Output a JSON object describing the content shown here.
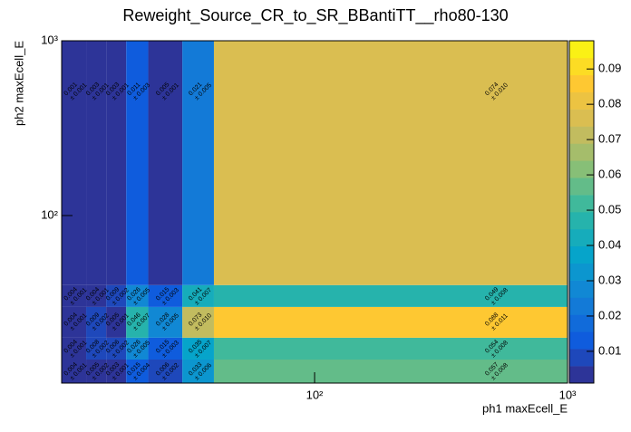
{
  "chart_data": {
    "type": "heatmap",
    "title": "Reweight_Source_CR_to_SR_BBantiTT__rho80-130",
    "x_label": "ph1 maxEcell_E",
    "y_label": "ph2 maxEcell_E",
    "x_edges": [
      10,
      12.5,
      15,
      18,
      22,
      30,
      40,
      1000
    ],
    "y_edges": [
      11,
      15,
      20,
      30,
      40,
      1000
    ],
    "xlim": [
      10,
      1000
    ],
    "ylim": [
      11,
      1000
    ],
    "x_log": true,
    "y_log": true,
    "xticks": [
      {
        "value": 100,
        "label": "10²"
      },
      {
        "value": 1000,
        "label": "10³"
      }
    ],
    "yticks": [
      {
        "value": 100,
        "label": "10²"
      },
      {
        "value": 1000,
        "label": "10³"
      }
    ],
    "z": [
      [
        0.004,
        0.005,
        0.003,
        0.015,
        0.006,
        0.033,
        0.057
      ],
      [
        0.004,
        0.008,
        0.006,
        0.026,
        0.015,
        0.035,
        0.054
      ],
      [
        0.004,
        0.009,
        0.005,
        0.046,
        0.028,
        0.073,
        0.088
      ],
      [
        0.004,
        0.004,
        0.009,
        0.026,
        0.015,
        0.041,
        0.049
      ],
      [
        0.001,
        0.003,
        0.003,
        0.011,
        0.005,
        0.021,
        0.074
      ]
    ],
    "error_labels": [
      [
        "± 0.001",
        "± 0.002",
        "± 0.001",
        "± 0.004",
        "± 0.002",
        "± 0.006",
        "± 0.008"
      ],
      [
        "± 0.001",
        "± 0.002",
        "± 0.002",
        "± 0.005",
        "± 0.003",
        "± 0.007",
        "± 0.008"
      ],
      [
        "± 0.001",
        "± 0.002",
        "± 0.001",
        "± 0.007",
        "± 0.005",
        "± 0.010",
        "± 0.011"
      ],
      [
        "± 0.001",
        "± 0.001",
        "± 0.002",
        "± 0.005",
        "± 0.003",
        "± 0.007",
        "± 0.008"
      ],
      [
        "± 0.001",
        "± 0.001",
        "± 0.001",
        "± 0.003",
        "± 0.001",
        "± 0.005",
        "± 0.010"
      ]
    ],
    "zlim": [
      0.001,
      0.098
    ],
    "zticks": [
      0.01,
      0.02,
      0.03,
      0.04,
      0.05,
      0.06,
      0.07,
      0.08,
      0.09
    ],
    "palette": [
      "#352a87",
      "#0f5cdd",
      "#1481d6",
      "#06a4ca",
      "#2eb7a4",
      "#87bf77",
      "#d1bb59",
      "#fec832",
      "#f9fb0e"
    ],
    "palette_levels": 20
  }
}
